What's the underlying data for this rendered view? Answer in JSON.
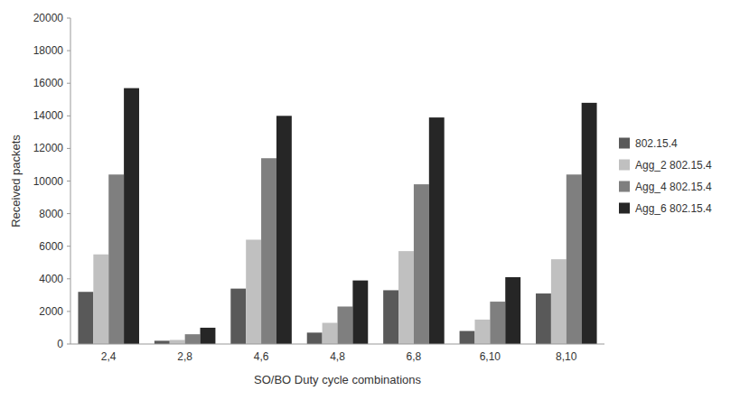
{
  "chart_data": {
    "type": "bar",
    "xlabel": "SO/BO Duty cycle combinations",
    "ylabel": "Received packets",
    "categories": [
      "2,4",
      "2,8",
      "4,6",
      "4,8",
      "6,8",
      "6,10",
      "8,10"
    ],
    "series": [
      {
        "name": "802.15.4",
        "color": "#595959",
        "values": [
          3200,
          200,
          3400,
          700,
          3300,
          800,
          3100
        ]
      },
      {
        "name": "Agg_2 802.15.4",
        "color": "#c0c0c0",
        "values": [
          5500,
          250,
          6400,
          1300,
          5700,
          1500,
          5200
        ]
      },
      {
        "name": "Agg_4 802.15.4",
        "color": "#7f7f7f",
        "values": [
          10400,
          600,
          11400,
          2300,
          9800,
          2600,
          10400
        ]
      },
      {
        "name": "Agg_6 802.15.4",
        "color": "#262626",
        "values": [
          15700,
          1000,
          14000,
          3900,
          13900,
          4100,
          14800
        ]
      }
    ],
    "ylim": [
      0,
      20000
    ],
    "yticks": [
      0,
      2000,
      4000,
      6000,
      8000,
      10000,
      12000,
      14000,
      16000,
      18000,
      20000
    ],
    "grid": false,
    "legend": "right"
  }
}
